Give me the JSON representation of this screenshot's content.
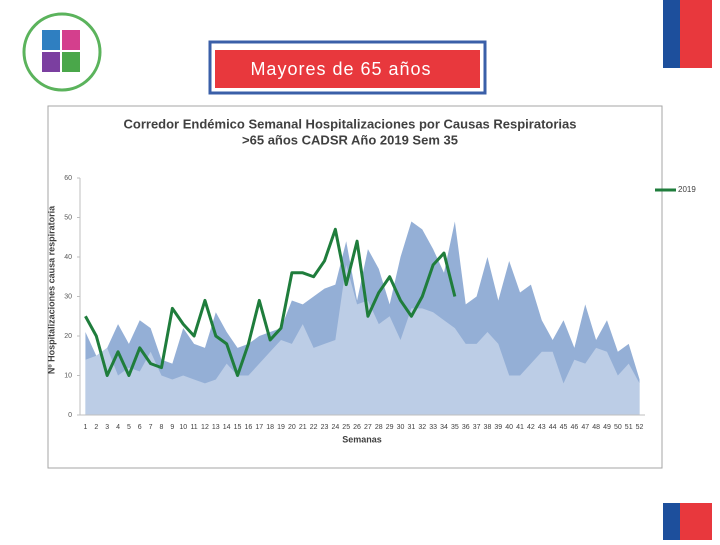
{
  "slide_title": "Mayores de 65 años",
  "chart_data": {
    "type": "area_corridor",
    "title": [
      "Corredor Endémico Semanal Hospitalizaciones por Causas Respiratorias",
      ">65 años CADSR Año 2019 Sem 35"
    ],
    "xlabel": "Semanas",
    "ylabel": "Nº Hospitalizaciones causa respiratoria",
    "categories": [
      "1",
      "2",
      "3",
      "4",
      "5",
      "6",
      "7",
      "8",
      "9",
      "10",
      "11",
      "12",
      "13",
      "14",
      "15",
      "16",
      "17",
      "18",
      "19",
      "20",
      "21",
      "22",
      "23",
      "24",
      "25",
      "26",
      "27",
      "28",
      "29",
      "30",
      "31",
      "32",
      "33",
      "34",
      "35",
      "36",
      "37",
      "38",
      "39",
      "40",
      "41",
      "42",
      "43",
      "44",
      "45",
      "46",
      "47",
      "48",
      "49",
      "50",
      "51",
      "52"
    ],
    "ylim": [
      0,
      60
    ],
    "yticks": [
      0,
      10,
      20,
      30,
      40,
      50,
      60
    ],
    "grid": false,
    "legend": "right",
    "areas": [
      {
        "color": "#94afd6",
        "values": [
          21,
          15,
          17,
          23,
          18,
          24,
          22,
          14,
          13,
          22,
          18,
          17,
          26,
          21,
          17,
          18,
          20,
          21,
          22,
          29,
          28,
          30,
          32,
          33,
          44,
          29,
          42,
          37,
          28,
          40,
          49,
          47,
          42,
          36,
          49,
          28,
          30,
          40,
          29,
          39,
          31,
          33,
          24,
          19,
          24,
          17,
          28,
          19,
          24,
          16,
          18,
          9
        ]
      },
      {
        "color": "#bccde6",
        "values": [
          14,
          15,
          17,
          10,
          12,
          11,
          16,
          10,
          9,
          10,
          9,
          8,
          9,
          13,
          10,
          10,
          13,
          16,
          19,
          18,
          23,
          17,
          18,
          19,
          38,
          28,
          29,
          23,
          25,
          19,
          27,
          27,
          26,
          24,
          22,
          18,
          18,
          21,
          18,
          10,
          10,
          13,
          16,
          16,
          8,
          14,
          13,
          17,
          16,
          10,
          13,
          8
        ]
      }
    ],
    "series": [
      {
        "name": "2019",
        "color": "#1f7d3c",
        "values": [
          25,
          20,
          10,
          16,
          10,
          17,
          13,
          12,
          27,
          23,
          20,
          29,
          20,
          18,
          10,
          18,
          29,
          19,
          22,
          36,
          36,
          35,
          39,
          47,
          33,
          44,
          25,
          31,
          35,
          29,
          25,
          30,
          38,
          41,
          30,
          null,
          null,
          null,
          null,
          null,
          null,
          null,
          null,
          null,
          null,
          null,
          null,
          null,
          null,
          null,
          null,
          null
        ]
      }
    ]
  }
}
